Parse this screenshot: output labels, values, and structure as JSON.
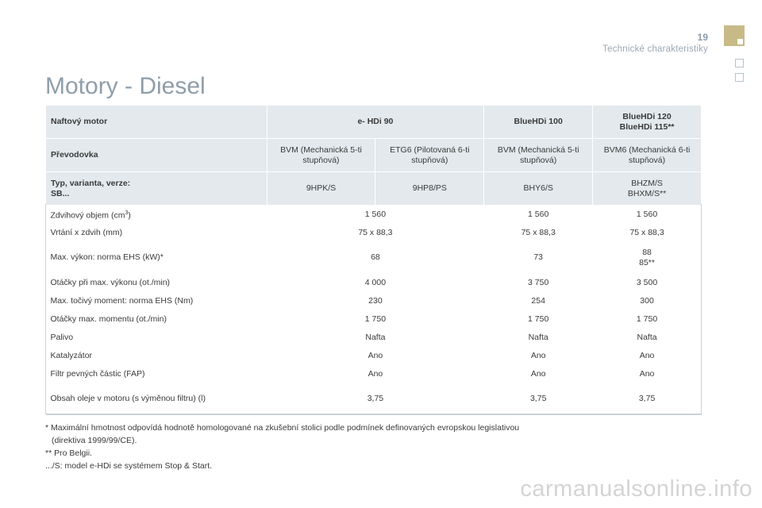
{
  "header": {
    "page_number": "19",
    "section": "Technické charakteristiky"
  },
  "title": "Motory - Diesel",
  "table": {
    "engine_label": "Naftový motor",
    "engines": [
      "e- HDi 90",
      "BlueHDi 100",
      "BlueHDi 120",
      "BlueHDi 115**"
    ],
    "gearbox_label": "Převodovka",
    "gearboxes": [
      "BVM (Mechanická 5-ti stupňová)",
      "ETG6 (Pilotovaná 6-ti stupňová)",
      "BVM (Mechanická 5-ti stupňová)",
      "BVM6 (Mechanická 6-ti stupňová)"
    ],
    "type_label_1": "Typ, varianta, verze:",
    "type_label_2": "SB...",
    "types": [
      "9HPK/S",
      "9HP8/PS",
      "BHY6/S",
      "BHZM/S",
      "BHXM/S**"
    ],
    "rows": [
      {
        "label": "Zdvihový objem (cm",
        "label_sup": "3",
        "label_end": ")",
        "v1": "1 560",
        "v2": "1 560",
        "v3": "1 560"
      },
      {
        "label": "Vrtání x zdvih (mm)",
        "v1": "75 x 88,3",
        "v2": "75 x 88,3",
        "v3": "75 x 88,3"
      },
      {
        "label": "Max. výkon: norma EHS (kW)*",
        "v1": "68",
        "v2": "73",
        "v3": "88",
        "v3b": "85**"
      },
      {
        "label": "Otáčky při max. výkonu (ot./min)",
        "v1": "4 000",
        "v2": "3 750",
        "v3": "3 500"
      },
      {
        "label": "Max. točivý moment: norma EHS (Nm)",
        "v1": "230",
        "v2": "254",
        "v3": "300"
      },
      {
        "label": "Otáčky max. momentu (ot./min)",
        "v1": "1 750",
        "v2": "1 750",
        "v3": "1 750"
      },
      {
        "label": "Palivo",
        "v1": "Nafta",
        "v2": "Nafta",
        "v3": "Nafta"
      },
      {
        "label": "Katalyzátor",
        "v1": "Ano",
        "v2": "Ano",
        "v3": "Ano"
      },
      {
        "label": "Filtr pevných částic (FAP)",
        "v1": "Ano",
        "v2": "Ano",
        "v3": "Ano"
      },
      {
        "label": "Obsah oleje v motoru (s výměnou filtru) (l)",
        "v1": "3,75",
        "v2": "3,75",
        "v3": "3,75"
      }
    ]
  },
  "footnotes": {
    "f1a": "* Maximální hmotnost odpovídá hodnotě homologované na zkušební stolici podle podmínek definovaných evropskou legislativou",
    "f1b": "(direktiva 1999/99/CE).",
    "f2": "** Pro Belgii.",
    "f3": ".../S: model e-HDi se systémem Stop & Start."
  },
  "watermark": "carmanualsonline.info",
  "colors": {
    "header_bg": "#e3e9ed",
    "accent": "#c7ba87",
    "title": "#8f9ea9"
  }
}
